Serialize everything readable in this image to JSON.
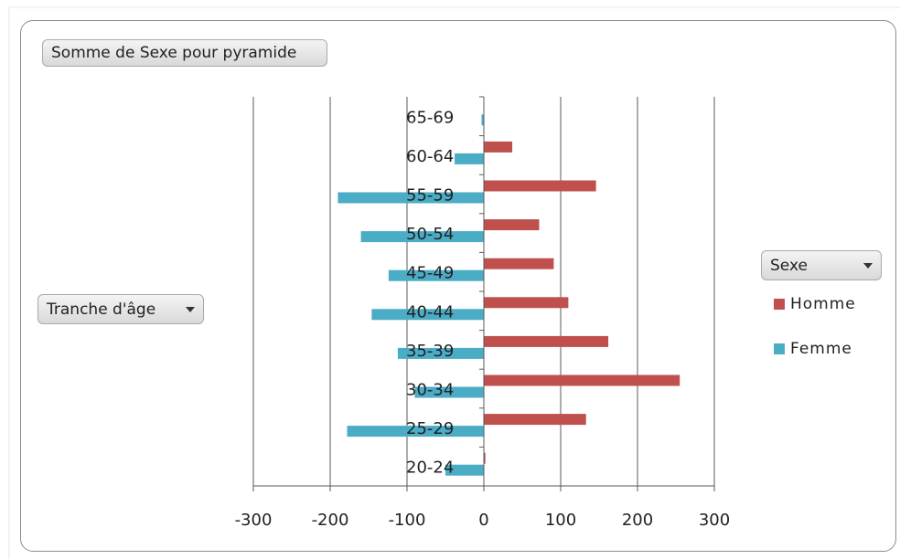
{
  "title_button": {
    "label": "Somme de Sexe pour pyramide"
  },
  "axis_field_button": {
    "label": "Tranche d'âge"
  },
  "legend_field_button": {
    "label": "Sexe"
  },
  "colors": {
    "homme": "#c0504d",
    "femme": "#4bacc6",
    "grid": "#595959"
  },
  "chart_data": {
    "type": "bar",
    "orientation": "horizontal",
    "categories": [
      "20-24",
      "25-29",
      "30-34",
      "35-39",
      "40-44",
      "45-49",
      "50-54",
      "55-59",
      "60-64",
      "65-69"
    ],
    "series": [
      {
        "name": "Homme",
        "values": [
          2,
          133,
          255,
          162,
          110,
          91,
          72,
          146,
          37,
          0
        ]
      },
      {
        "name": "Femme",
        "values": [
          -50,
          -178,
          -90,
          -112,
          -146,
          -124,
          -160,
          -190,
          -38,
          -3
        ]
      }
    ],
    "xlim": [
      -300,
      300
    ],
    "xticks": [
      "-300",
      "-200",
      "-100",
      "0",
      "100",
      "200",
      "300"
    ],
    "grid": true,
    "legend": "right"
  }
}
